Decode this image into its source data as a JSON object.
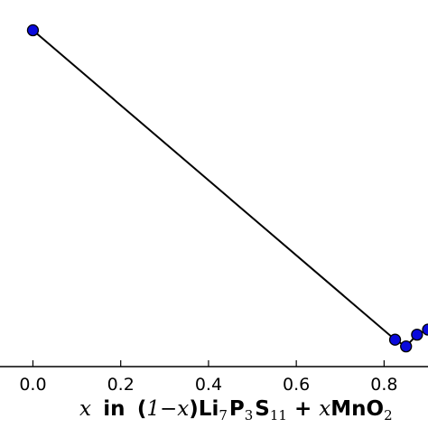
{
  "chart_data": {
    "type": "line",
    "x": [
      0.0,
      0.825,
      0.85,
      0.875,
      0.9
    ],
    "series": [
      {
        "values": [
          1.0,
          0.08,
          0.06,
          0.095,
          0.11
        ]
      }
    ],
    "xlim": [
      -0.075,
      0.9
    ],
    "ylim": [
      0.0,
      1.09
    ],
    "xticks": [
      0.0,
      0.2,
      0.4,
      0.6,
      0.8
    ],
    "xtick_labels": [
      "0.0",
      "0.2",
      "0.4",
      "0.6",
      "0.8"
    ],
    "xlabel_parts": {
      "var": "x",
      "in": "in",
      "open": "(",
      "one_minus": "1−",
      "close": ")",
      "li": "Li",
      "li_sub": "7",
      "p": "P",
      "p_sub": "3",
      "s": "S",
      "s_sub": "11",
      "plus": "+",
      "mno": "MnO",
      "mno_sub": "2"
    },
    "grid": false,
    "colors": {
      "marker_fill": "#0a0adc",
      "marker_edge": "#000000",
      "line": "#000000"
    }
  }
}
